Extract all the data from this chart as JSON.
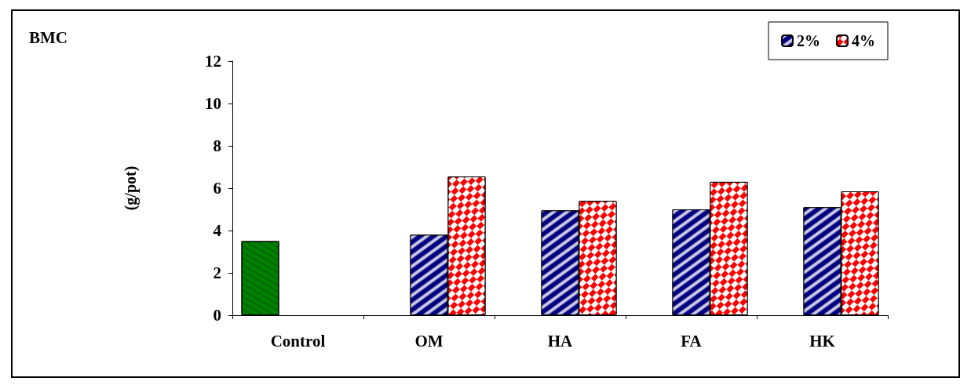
{
  "chart_data": {
    "type": "bar",
    "title": "BMC",
    "ylabel": "(g/pot)",
    "categories": [
      "Control",
      "OM",
      "HA",
      "FA",
      "HK"
    ],
    "series": [
      {
        "color": "#008000",
        "values": [
          3.5,
          null,
          null,
          null,
          null
        ]
      },
      {
        "name": "2%",
        "color": "#000080",
        "values": [
          null,
          3.8,
          4.95,
          5.0,
          5.1
        ]
      },
      {
        "name": "4%",
        "color": "#ff0000",
        "values": [
          null,
          6.55,
          5.4,
          6.3,
          5.85
        ]
      }
    ],
    "ylim": [
      0,
      12
    ],
    "yticks": [
      0,
      2,
      4,
      6,
      8,
      10,
      12
    ],
    "grid": false,
    "legend": "top right"
  }
}
